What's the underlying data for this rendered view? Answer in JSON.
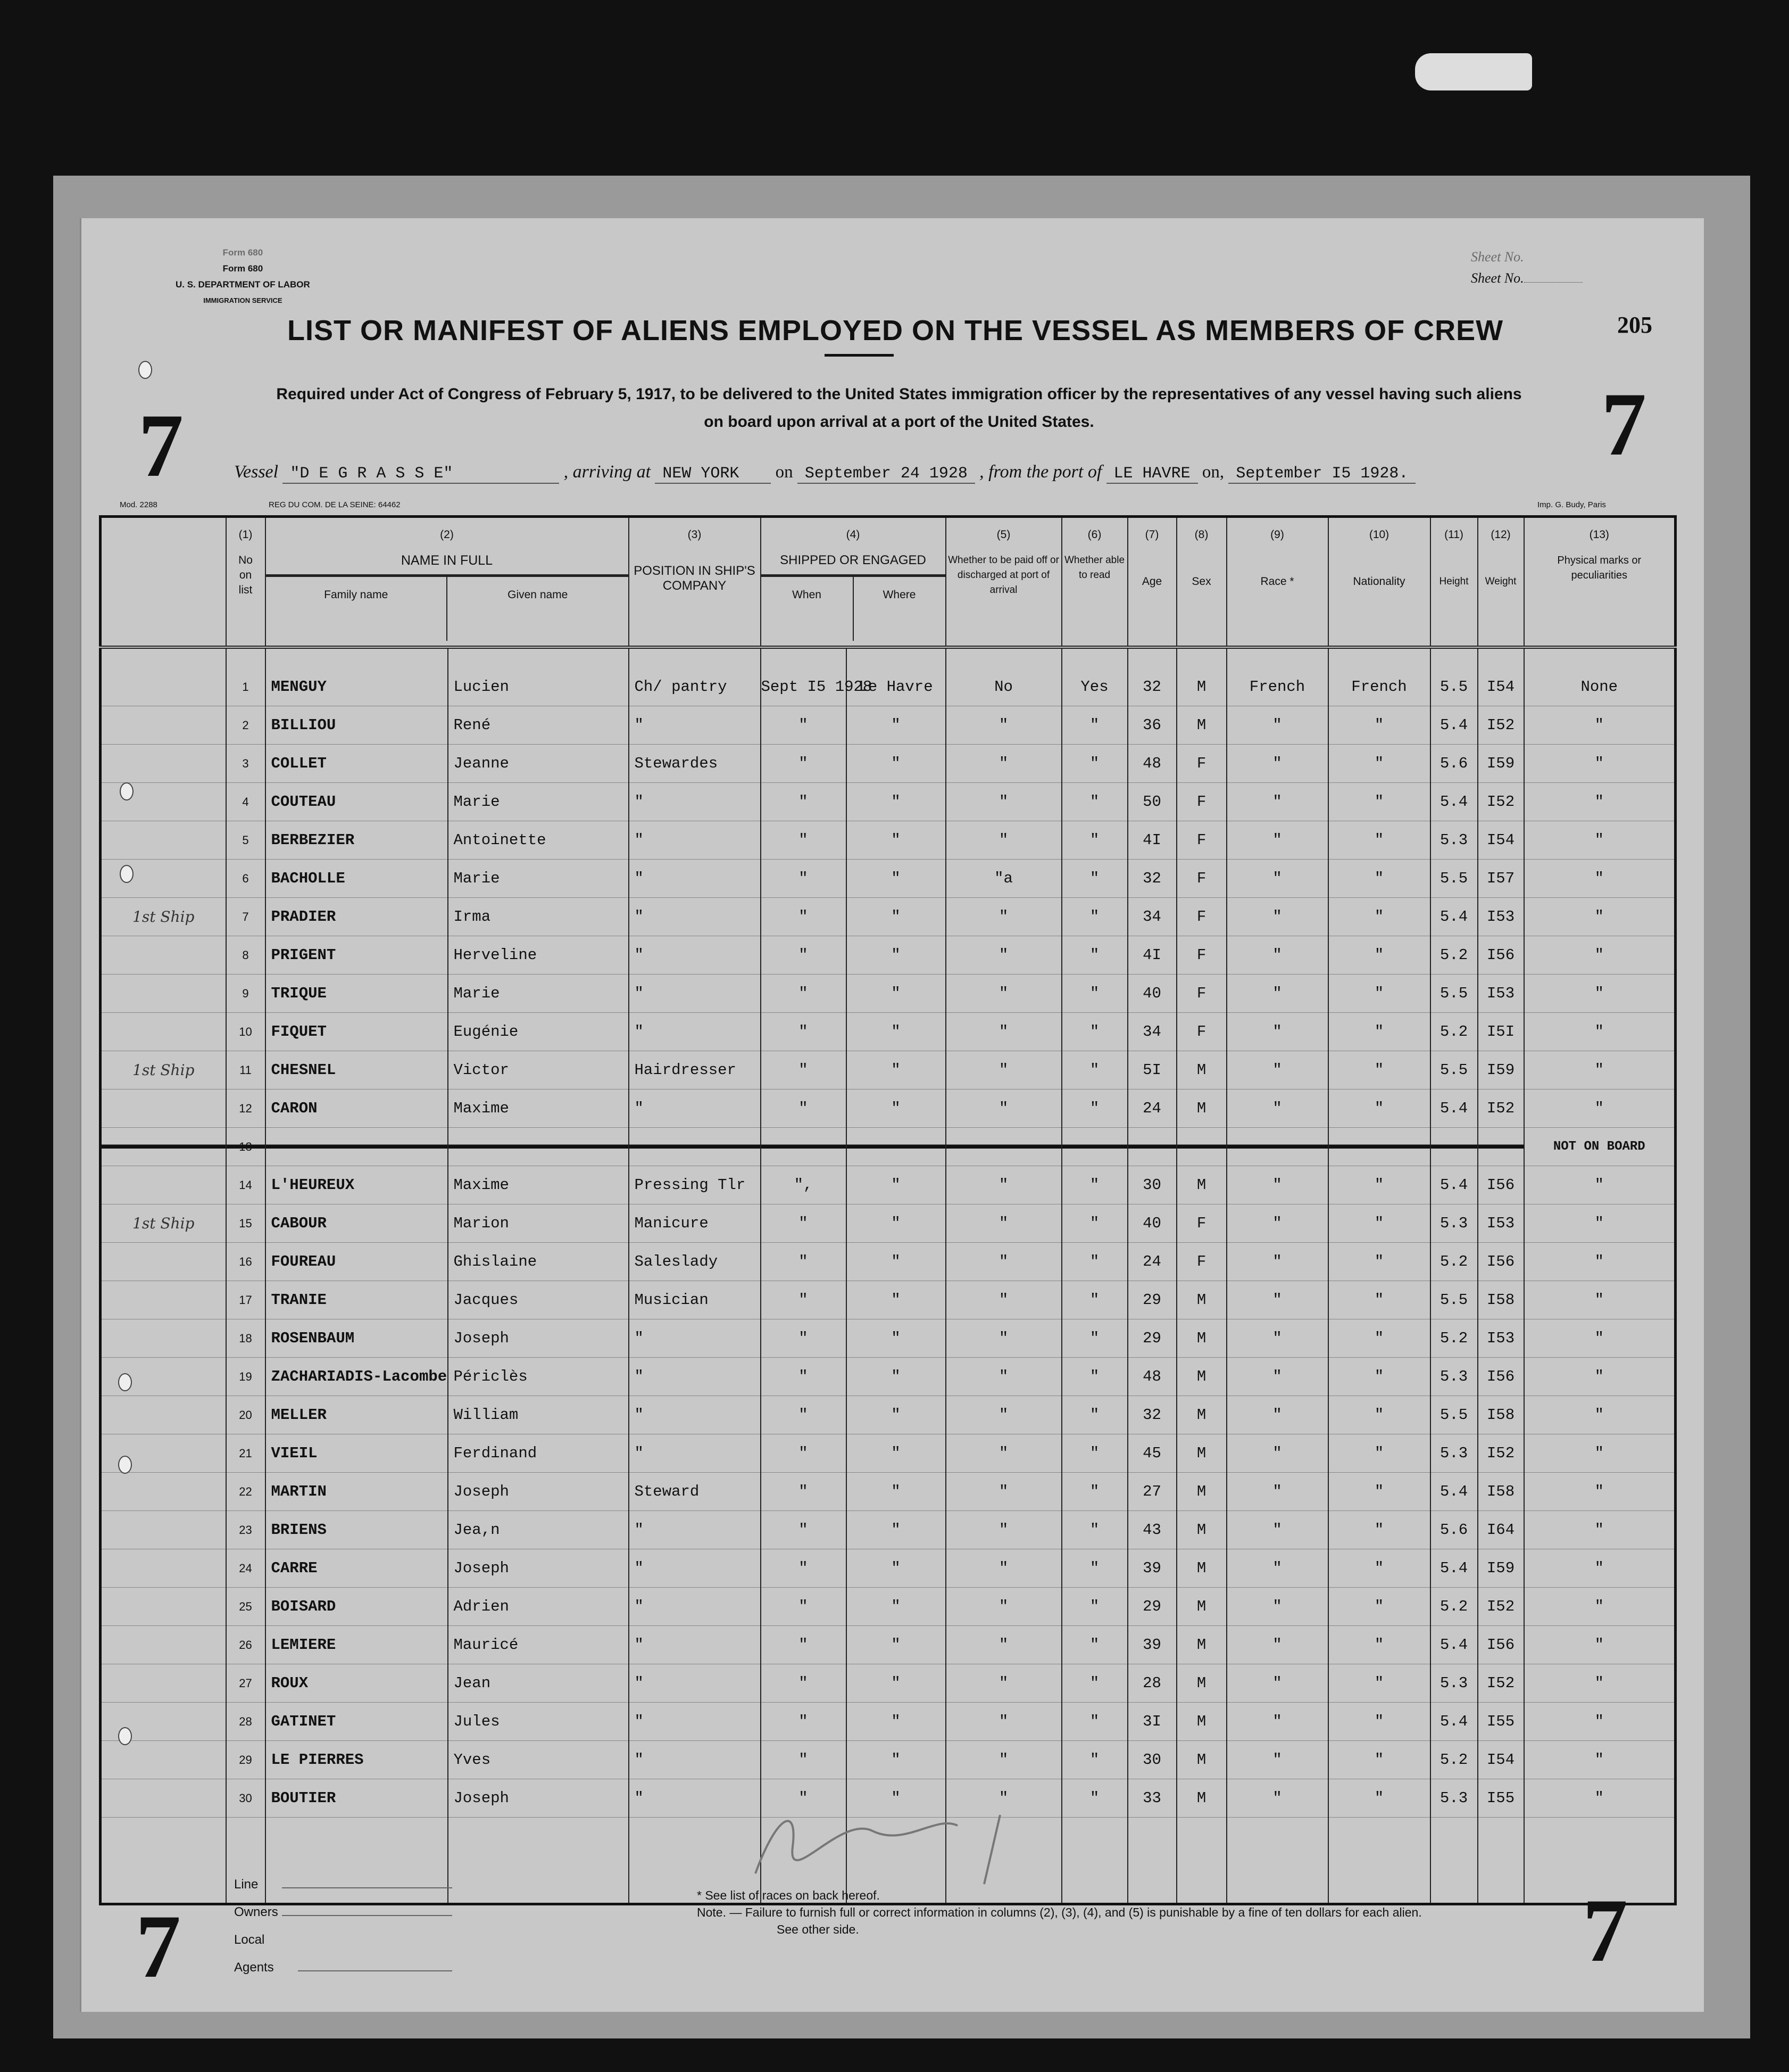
{
  "form": {
    "form_no_top": "Form 680",
    "form_no": "Form 680",
    "department": "U. S. DEPARTMENT OF LABOR",
    "service": "IMMIGRATION SERVICE",
    "sheet_no_label": "Sheet No.",
    "page_number": "205",
    "title": "LIST OR MANIFEST OF ALIENS EMPLOYED ON THE VESSEL AS MEMBERS OF CREW",
    "requirement_line1": "Required under Act of Congress of February 5, 1917, to be delivered to the United States immigration officer by the representatives of any vessel having such aliens",
    "requirement_line2": "on board upon arrival at a port of the United States.",
    "sheet_mark": "7",
    "mod": "Mod. 2288",
    "reg": "REG DU COM. DE LA SEINE: 64462",
    "printer": "Imp. G. Budy, Paris"
  },
  "voyage": {
    "vessel_label": "Vessel",
    "vessel": "\"D E  G R A S S E\"",
    "arriving_label": ", arriving at",
    "arriving_port": "NEW YORK",
    "on_label": "on",
    "arrival_date": "September 24 1928",
    "from_label": ", from the port of",
    "from_port": "LE HAVRE",
    "on_label2": "on,",
    "departure_date": "September I5 1928."
  },
  "columns": {
    "c1_num": "(1)",
    "c1": "No on list",
    "c2_num": "(2)",
    "c2": "NAME IN FULL",
    "c2a": "Family name",
    "c2b": "Given name",
    "c3_num": "(3)",
    "c3": "POSITION IN SHIP'S COMPANY",
    "c4_num": "(4)",
    "c4": "SHIPPED OR ENGAGED",
    "c4a": "When",
    "c4b": "Where",
    "c5_num": "(5)",
    "c5": "Whether to be paid off or discharged at port of arrival",
    "c6_num": "(6)",
    "c6": "Whether able to read",
    "c7_num": "(7)",
    "c7": "Age",
    "c8_num": "(8)",
    "c8": "Sex",
    "c9_num": "(9)",
    "c9": "Race *",
    "c10_num": "(10)",
    "c10": "Nationality",
    "c11_num": "(11)",
    "c11": "Height",
    "c12_num": "(12)",
    "c12": "Weight",
    "c13_num": "(13)",
    "c13": "Physical marks or peculiarities"
  },
  "rows": [
    {
      "margin": "",
      "no": "1",
      "family": "MENGUY",
      "given": "Lucien",
      "position": "Ch/ pantry",
      "when": "Sept I5 1928",
      "where": "Le Havre",
      "paid": "No",
      "read": "Yes",
      "age": "32",
      "sex": "M",
      "race": "French",
      "nationality": "French",
      "height": "5.5",
      "weight": "I54",
      "marks": "None"
    },
    {
      "margin": "",
      "no": "2",
      "family": "BILLIOU",
      "given": "René",
      "position": "\"",
      "when": "\"",
      "where": "\"",
      "paid": "\"",
      "read": "\"",
      "age": "36",
      "sex": "M",
      "race": "\"",
      "nationality": "\"",
      "height": "5.4",
      "weight": "I52",
      "marks": "\""
    },
    {
      "margin": "",
      "no": "3",
      "family": "COLLET",
      "given": "Jeanne",
      "position": "Stewardes",
      "when": "\"",
      "where": "\"",
      "paid": "\"",
      "read": "\"",
      "age": "48",
      "sex": "F",
      "race": "\"",
      "nationality": "\"",
      "height": "5.6",
      "weight": "I59",
      "marks": "\""
    },
    {
      "margin": "",
      "no": "4",
      "family": "COUTEAU",
      "given": "Marie",
      "position": "\"",
      "when": "\"",
      "where": "\"",
      "paid": "\"",
      "read": "\"",
      "age": "50",
      "sex": "F",
      "race": "\"",
      "nationality": "\"",
      "height": "5.4",
      "weight": "I52",
      "marks": "\""
    },
    {
      "margin": "",
      "no": "5",
      "family": "BERBEZIER",
      "given": "Antoinette",
      "position": "\"",
      "when": "\"",
      "where": "\"",
      "paid": "\"",
      "read": "\"",
      "age": "4I",
      "sex": "F",
      "race": "\"",
      "nationality": "\"",
      "height": "5.3",
      "weight": "I54",
      "marks": "\""
    },
    {
      "margin": "",
      "no": "6",
      "family": "BACHOLLE",
      "given": "Marie",
      "position": "\"",
      "when": "\"",
      "where": "\"",
      "paid": "\"a",
      "read": "\"",
      "age": "32",
      "sex": "F",
      "race": "\"",
      "nationality": "\"",
      "height": "5.5",
      "weight": "I57",
      "marks": "\""
    },
    {
      "margin": "1st Ship",
      "no": "7",
      "family": "PRADIER",
      "given": "Irma",
      "position": "\"",
      "when": "\"",
      "where": "\"",
      "paid": "\"",
      "read": "\"",
      "age": "34",
      "sex": "F",
      "race": "\"",
      "nationality": "\"",
      "height": "5.4",
      "weight": "I53",
      "marks": "\""
    },
    {
      "margin": "",
      "no": "8",
      "family": "PRIGENT",
      "given": "Herveline",
      "position": "\"",
      "when": "\"",
      "where": "\"",
      "paid": "\"",
      "read": "\"",
      "age": "4I",
      "sex": "F",
      "race": "\"",
      "nationality": "\"",
      "height": "5.2",
      "weight": "I56",
      "marks": "\""
    },
    {
      "margin": "",
      "no": "9",
      "family": "TRIQUE",
      "given": "Marie",
      "position": "\"",
      "when": "\"",
      "where": "\"",
      "paid": "\"",
      "read": "\"",
      "age": "40",
      "sex": "F",
      "race": "\"",
      "nationality": "\"",
      "height": "5.5",
      "weight": "I53",
      "marks": "\""
    },
    {
      "margin": "",
      "no": "10",
      "family": "FIQUET",
      "given": "Eugénie",
      "position": "\"",
      "when": "\"",
      "where": "\"",
      "paid": "\"",
      "read": "\"",
      "age": "34",
      "sex": "F",
      "race": "\"",
      "nationality": "\"",
      "height": "5.2",
      "weight": "I5I",
      "marks": "\""
    },
    {
      "margin": "1st Ship",
      "no": "11",
      "family": "CHESNEL",
      "given": "Victor",
      "position": "Hairdresser",
      "when": "\"",
      "where": "\"",
      "paid": "\"",
      "read": "\"",
      "age": "5I",
      "sex": "M",
      "race": "\"",
      "nationality": "\"",
      "height": "5.5",
      "weight": "I59",
      "marks": "\""
    },
    {
      "margin": "",
      "no": "12",
      "family": "CARON",
      "given": "Maxime",
      "position": "\"",
      "when": "\"",
      "where": "\"",
      "paid": "\"",
      "read": "\"",
      "age": "24",
      "sex": "M",
      "race": "\"",
      "nationality": "\"",
      "height": "5.4",
      "weight": "I52",
      "marks": "\""
    },
    {
      "margin": "",
      "no": "13",
      "family": "",
      "given": "",
      "position": "",
      "when": "",
      "where": "",
      "paid": "",
      "read": "",
      "age": "",
      "sex": "",
      "race": "",
      "nationality": "",
      "height": "",
      "weight": "",
      "marks": "NOT ON BOARD",
      "struck": true
    },
    {
      "margin": "",
      "no": "14",
      "family": "L'HEUREUX",
      "given": "Maxime",
      "position": "Pressing Tlr",
      "when": "\",",
      "where": "\"",
      "paid": "\"",
      "read": "\"",
      "age": "30",
      "sex": "M",
      "race": "\"",
      "nationality": "\"",
      "height": "5.4",
      "weight": "I56",
      "marks": "\""
    },
    {
      "margin": "1st Ship",
      "no": "15",
      "family": "CABOUR",
      "given": "Marion",
      "position": "Manicure",
      "when": "\"",
      "where": "\"",
      "paid": "\"",
      "read": "\"",
      "age": "40",
      "sex": "F",
      "race": "\"",
      "nationality": "\"",
      "height": "5.3",
      "weight": "I53",
      "marks": "\""
    },
    {
      "margin": "",
      "no": "16",
      "family": "FOUREAU",
      "given": "Ghislaine",
      "position": "Saleslady",
      "when": "\"",
      "where": "\"",
      "paid": "\"",
      "read": "\"",
      "age": "24",
      "sex": "F",
      "race": "\"",
      "nationality": "\"",
      "height": "5.2",
      "weight": "I56",
      "marks": "\""
    },
    {
      "margin": "",
      "no": "17",
      "family": "TRANIE",
      "given": "Jacques",
      "position": "Musician",
      "when": "\"",
      "where": "\"",
      "paid": "\"",
      "read": "\"",
      "age": "29",
      "sex": "M",
      "race": "\"",
      "nationality": "\"",
      "height": "5.5",
      "weight": "I58",
      "marks": "\""
    },
    {
      "margin": "",
      "no": "18",
      "family": "ROSENBAUM",
      "given": "Joseph",
      "position": "\"",
      "when": "\"",
      "where": "\"",
      "paid": "\"",
      "read": "\"",
      "age": "29",
      "sex": "M",
      "race": "\"",
      "nationality": "\"",
      "height": "5.2",
      "weight": "I53",
      "marks": "\""
    },
    {
      "margin": "",
      "no": "19",
      "family": "ZACHARIADIS-Lacombe",
      "given": "Périclès",
      "position": "\"",
      "when": "\"",
      "where": "\"",
      "paid": "\"",
      "read": "\"",
      "age": "48",
      "sex": "M",
      "race": "\"",
      "nationality": "\"",
      "height": "5.3",
      "weight": "I56",
      "marks": "\""
    },
    {
      "margin": "",
      "no": "20",
      "family": "MELLER",
      "given": "William",
      "position": "\"",
      "when": "\"",
      "where": "\"",
      "paid": "\"",
      "read": "\"",
      "age": "32",
      "sex": "M",
      "race": "\"",
      "nationality": "\"",
      "height": "5.5",
      "weight": "I58",
      "marks": "\""
    },
    {
      "margin": "",
      "no": "21",
      "family": "VIEIL",
      "given": "Ferdinand",
      "position": "\"",
      "when": "\"",
      "where": "\"",
      "paid": "\"",
      "read": "\"",
      "age": "45",
      "sex": "M",
      "race": "\"",
      "nationality": "\"",
      "height": "5.3",
      "weight": "I52",
      "marks": "\""
    },
    {
      "margin": "",
      "no": "22",
      "family": "MARTIN",
      "given": "Joseph",
      "position": "Steward",
      "when": "\"",
      "where": "\"",
      "paid": "\"",
      "read": "\"",
      "age": "27",
      "sex": "M",
      "race": "\"",
      "nationality": "\"",
      "height": "5.4",
      "weight": "I58",
      "marks": "\""
    },
    {
      "margin": "",
      "no": "23",
      "family": "BRIENS",
      "given": "Jea,n",
      "position": "\"",
      "when": "\"",
      "where": "\"",
      "paid": "\"",
      "read": "\"",
      "age": "43",
      "sex": "M",
      "race": "\"",
      "nationality": "\"",
      "height": "5.6",
      "weight": "I64",
      "marks": "\""
    },
    {
      "margin": "",
      "no": "24",
      "family": "CARRE",
      "given": "Joseph",
      "position": "\"",
      "when": "\"",
      "where": "\"",
      "paid": "\"",
      "read": "\"",
      "age": "39",
      "sex": "M",
      "race": "\"",
      "nationality": "\"",
      "height": "5.4",
      "weight": "I59",
      "marks": "\""
    },
    {
      "margin": "",
      "no": "25",
      "family": "BOISARD",
      "given": "Adrien",
      "position": "\"",
      "when": "\"",
      "where": "\"",
      "paid": "\"",
      "read": "\"",
      "age": "29",
      "sex": "M",
      "race": "\"",
      "nationality": "\"",
      "height": "5.2",
      "weight": "I52",
      "marks": "\""
    },
    {
      "margin": "",
      "no": "26",
      "family": "LEMIERE",
      "given": "Mauricé",
      "position": "\"",
      "when": "\"",
      "where": "\"",
      "paid": "\"",
      "read": "\"",
      "age": "39",
      "sex": "M",
      "race": "\"",
      "nationality": "\"",
      "height": "5.4",
      "weight": "I56",
      "marks": "\""
    },
    {
      "margin": "",
      "no": "27",
      "family": "ROUX",
      "given": "Jean",
      "position": "\"",
      "when": "\"",
      "where": "\"",
      "paid": "\"",
      "read": "\"",
      "age": "28",
      "sex": "M",
      "race": "\"",
      "nationality": "\"",
      "height": "5.3",
      "weight": "I52",
      "marks": "\""
    },
    {
      "margin": "",
      "no": "28",
      "family": "GATINET",
      "given": "Jules",
      "position": "\"",
      "when": "\"",
      "where": "\"",
      "paid": "\"",
      "read": "\"",
      "age": "3I",
      "sex": "M",
      "race": "\"",
      "nationality": "\"",
      "height": "5.4",
      "weight": "I55",
      "marks": "\""
    },
    {
      "margin": "",
      "no": "29",
      "family": "LE PIERRES",
      "given": "Yves",
      "position": "\"",
      "when": "\"",
      "where": "\"",
      "paid": "\"",
      "read": "\"",
      "age": "30",
      "sex": "M",
      "race": "\"",
      "nationality": "\"",
      "height": "5.2",
      "weight": "I54",
      "marks": "\""
    },
    {
      "margin": "",
      "no": "30",
      "family": "BOUTIER",
      "given": "Joseph",
      "position": "\"",
      "when": "\"",
      "where": "\"",
      "paid": "\"",
      "read": "\"",
      "age": "33",
      "sex": "M",
      "race": "\"",
      "nationality": "\"",
      "height": "5.3",
      "weight": "I55",
      "marks": "\""
    }
  ],
  "footer": {
    "line_label": "Line",
    "owners_label": "Owners",
    "agents_label": "Local Agents",
    "race_note": "* See list of races on back hereof.",
    "note": "Note. — Failure to furnish full or correct information in columns (2), (3), (4), and (5) is punishable by a fine of ten dollars for each alien.",
    "see_other": "See other side."
  }
}
